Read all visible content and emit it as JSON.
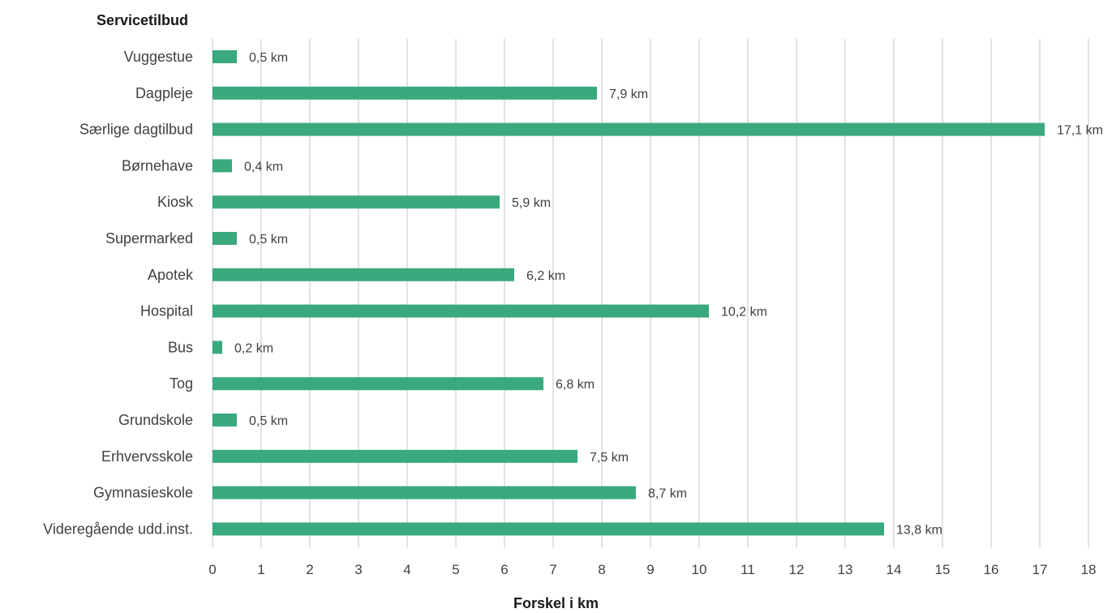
{
  "chart_data": {
    "type": "bar",
    "orientation": "horizontal",
    "ylabel": "Servicetilbud",
    "xlabel": "Forskel i km",
    "xlim": [
      0,
      18
    ],
    "grid": true,
    "bar_color": "#3aaa7e",
    "categories": [
      "Vuggestue",
      "Dagpleje",
      "Særlige dagtilbud",
      "Børnehave",
      "Kiosk",
      "Supermarked",
      "Apotek",
      "Hospital",
      "Bus",
      "Tog",
      "Grundskole",
      "Erhvervsskole",
      "Gymnasieskole",
      "Videregående udd.inst."
    ],
    "values": [
      0.5,
      7.9,
      17.1,
      0.4,
      5.9,
      0.5,
      6.2,
      10.2,
      0.2,
      6.8,
      0.5,
      7.5,
      8.7,
      13.8
    ],
    "data_labels": [
      "0,5 km",
      "7,9 km",
      "17,1 km",
      "0,4 km",
      "5,9 km",
      "0,5 km",
      "6,2 km",
      "10,2 km",
      "0,2 km",
      "6,8 km",
      "0,5 km",
      "7,5 km",
      "8,7 km",
      "13,8 km"
    ],
    "x_ticks": [
      "0",
      "1",
      "2",
      "3",
      "4",
      "5",
      "6",
      "7",
      "8",
      "9",
      "10",
      "11",
      "12",
      "13",
      "14",
      "15",
      "16",
      "17",
      "18"
    ]
  }
}
